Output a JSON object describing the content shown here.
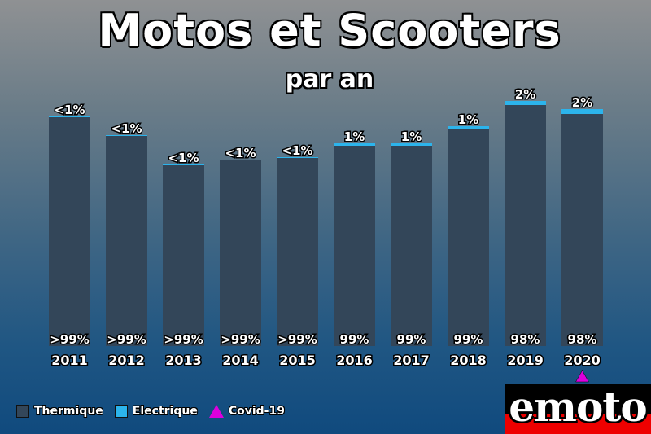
{
  "header": {
    "title": "Motos et Scooters",
    "subtitle": "par an"
  },
  "colors": {
    "thermique": "#334659",
    "electrique": "#2cb4ec",
    "covid": "#dd00dd"
  },
  "chart_data": {
    "type": "bar",
    "stacked": true,
    "title": "Motos et Scooters",
    "subtitle": "par an",
    "categories": [
      "2011",
      "2012",
      "2013",
      "2014",
      "2015",
      "2016",
      "2017",
      "2018",
      "2019",
      "2020"
    ],
    "series": [
      {
        "name": "Thermique",
        "values": [
          281,
          258,
          222,
          228,
          231,
          246,
          246,
          267,
          296,
          285
        ],
        "labels": [
          ">99%",
          ">99%",
          ">99%",
          ">99%",
          ">99%",
          "99%",
          "99%",
          "99%",
          "98%",
          "98%"
        ]
      },
      {
        "name": "Electrique",
        "values": [
          1,
          1,
          1,
          1,
          1,
          3,
          3,
          3,
          5,
          6
        ],
        "labels": [
          "<1%",
          "<1%",
          "<1%",
          "<1%",
          "<1%",
          "1%",
          "1%",
          "1%",
          "2%",
          "2%"
        ]
      }
    ],
    "annotations": [
      {
        "category": "2020",
        "marker": "triangle",
        "label": "Covid-19"
      }
    ],
    "ylim": [
      0,
      302
    ],
    "grid": false,
    "legend_position": "bottom-left"
  },
  "legend": {
    "items": [
      {
        "label": "Thermique"
      },
      {
        "label": "Electrique"
      },
      {
        "label": "Covid-19"
      }
    ]
  },
  "logo": {
    "text": "emoto"
  }
}
